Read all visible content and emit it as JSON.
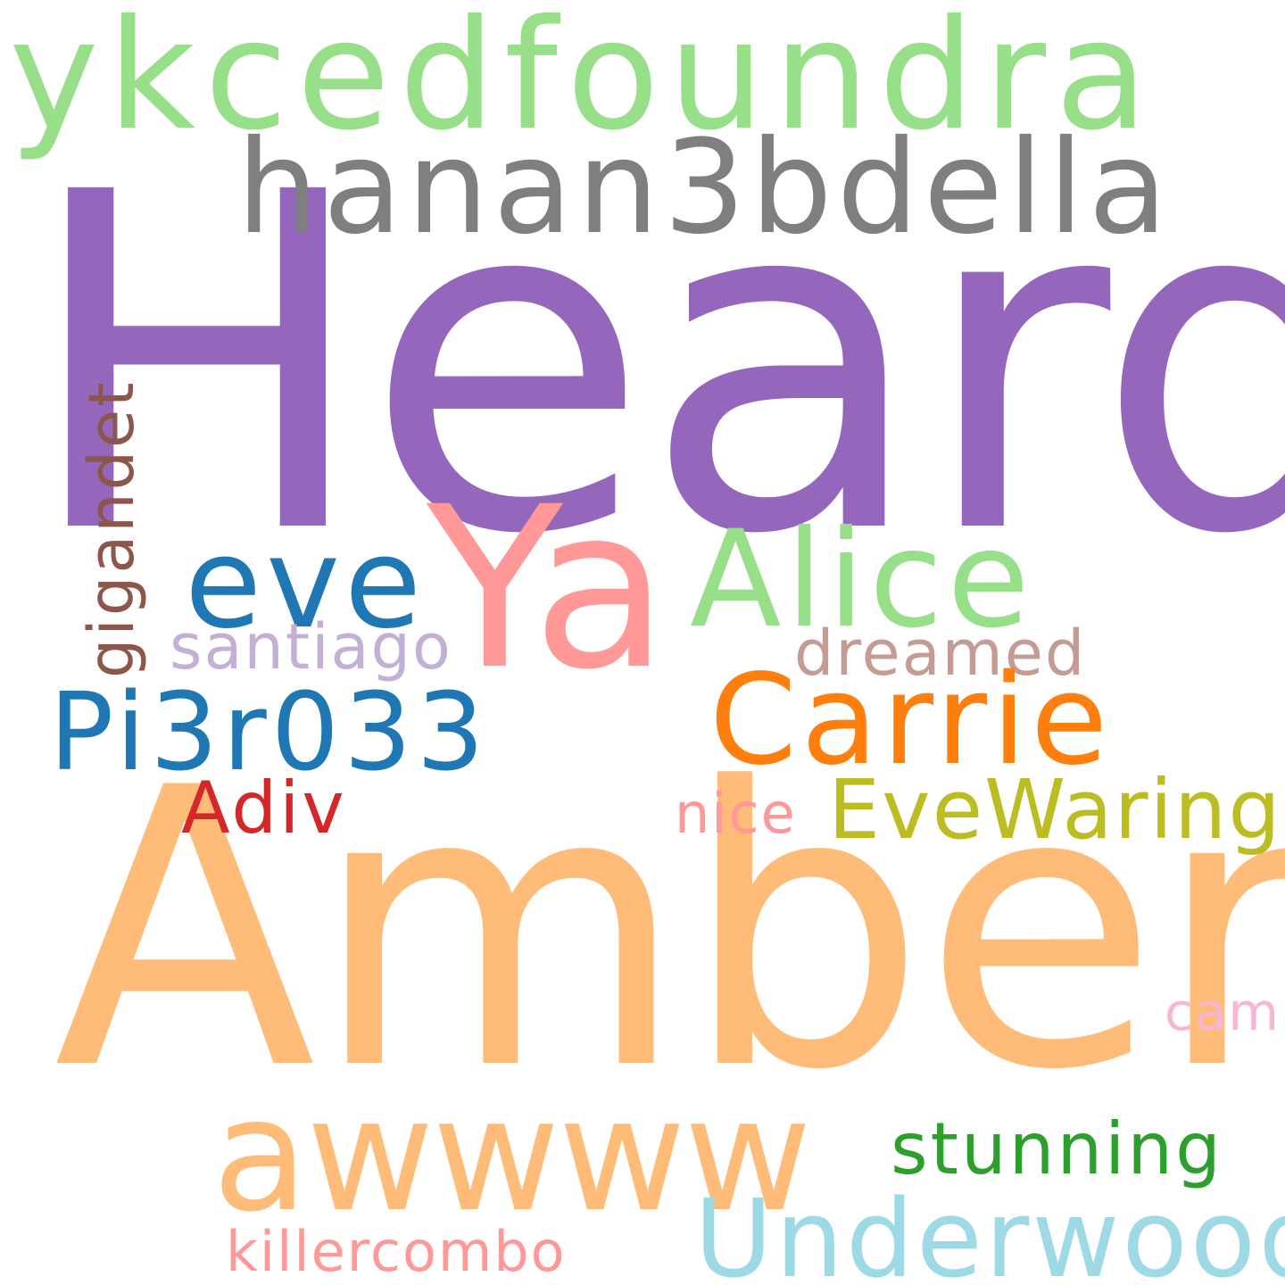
{
  "words": [
    {
      "text": "Heard",
      "color": "#9467bd"
    },
    {
      "text": "Amber",
      "color": "#ffbb78"
    },
    {
      "text": "ykcedfoundra",
      "color": "#98df8a"
    },
    {
      "text": "hanan3bdella",
      "color": "#7f7f7f"
    },
    {
      "text": "Ya",
      "color": "#ff9896"
    },
    {
      "text": "eve",
      "color": "#1f77b4"
    },
    {
      "text": "Alice",
      "color": "#98df8a"
    },
    {
      "text": "santiago",
      "color": "#c5b0d5"
    },
    {
      "text": "dreamed",
      "color": "#c49c94"
    },
    {
      "text": "Pi3r033",
      "color": "#1f77b4"
    },
    {
      "text": "Carrie",
      "color": "#ff7f0e"
    },
    {
      "text": "Adiv",
      "color": "#d62728"
    },
    {
      "text": "nice",
      "color": "#ff9896"
    },
    {
      "text": "EveWaring",
      "color": "#bcbd22"
    },
    {
      "text": "cam",
      "color": "#f7b6d2"
    },
    {
      "text": "awwww",
      "color": "#ffbb78"
    },
    {
      "text": "stunning",
      "color": "#2ca02c"
    },
    {
      "text": "Underwood",
      "color": "#9edae5"
    },
    {
      "text": "killercombo",
      "color": "#ff9896"
    },
    {
      "text": "gigandet",
      "color": "#8c564b"
    }
  ]
}
